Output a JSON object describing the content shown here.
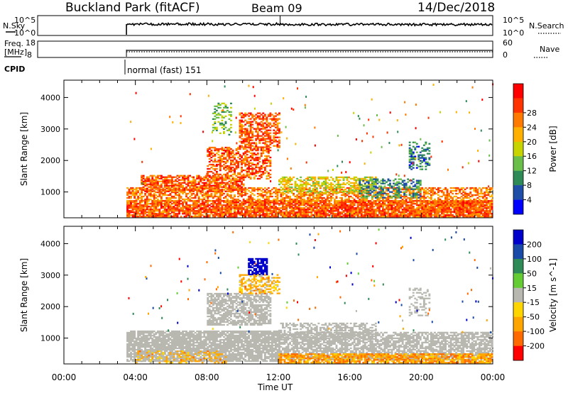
{
  "header": {
    "station": "Buckland Park (fitACF)",
    "beam": "Beam 09",
    "date": "14/Dec/2018"
  },
  "summary_panels": {
    "nsky_label": "N.Sky",
    "nsky_ticks": [
      "10^5",
      "10^0"
    ],
    "nsearch_label": "N.Search",
    "nsearch_ticks": [
      "10^5",
      "10^0"
    ],
    "freq_label_line1": "Freq.",
    "freq_label_line2": "[MHz]",
    "freq_ticks": [
      "18",
      "8"
    ],
    "nave_label": "Nave",
    "nave_ticks": [
      "60",
      "0"
    ],
    "cpid_label": "CPID",
    "cpid_mode": "normal (fast) 151"
  },
  "colors": {
    "frame": "#000000",
    "power_scale": [
      "#0000ff",
      "#1f4ea8",
      "#2e8b57",
      "#6abf4b",
      "#c8d400",
      "#ffb000",
      "#ff7a00",
      "#ff3300",
      "#ff0000"
    ],
    "velocity_scale": [
      "#0000cc",
      "#1a4aa8",
      "#2e8b57",
      "#66cc33",
      "#b8b8b0",
      "#ffd500",
      "#ffa500",
      "#ff6a00",
      "#ff0000"
    ],
    "ground_scatter": "#b8b8b0"
  },
  "chart_data": [
    {
      "type": "heatmap",
      "name": "power",
      "ylabel": "Slant Range [km]",
      "xlabel": "Time UT",
      "x_ticks": [
        "00:00",
        "04:00",
        "08:00",
        "12:00",
        "16:00",
        "20:00",
        "00:00"
      ],
      "y_ticks": [
        1000,
        2000,
        3000,
        4000
      ],
      "xlim_hours": [
        0,
        24
      ],
      "ylim_km": [
        180,
        4550
      ],
      "colorbar_label": "Power [dB]",
      "colorbar_ticks": [
        4,
        8,
        12,
        16,
        20,
        24,
        28
      ],
      "colorbar_range": [
        0,
        32
      ],
      "data_start_hour": 3.5,
      "regions": [
        {
          "t0": 3.5,
          "t1": 24.0,
          "r0": 200,
          "r1": 700,
          "level": 30,
          "density": 0.85
        },
        {
          "t0": 3.5,
          "t1": 24.0,
          "r0": 700,
          "r1": 1150,
          "level": 28,
          "density": 0.55
        },
        {
          "t0": 4.3,
          "t1": 10.0,
          "r0": 1000,
          "r1": 1500,
          "level": 30,
          "density": 0.7
        },
        {
          "t0": 8.0,
          "t1": 11.5,
          "r0": 1400,
          "r1": 2400,
          "level": 30,
          "density": 0.55
        },
        {
          "t0": 9.8,
          "t1": 12.0,
          "r0": 2400,
          "r1": 3500,
          "level": 30,
          "density": 0.55
        },
        {
          "t0": 8.3,
          "t1": 9.3,
          "r0": 2800,
          "r1": 3800,
          "level": 18,
          "density": 0.3
        },
        {
          "t0": 12.0,
          "t1": 17.5,
          "r0": 950,
          "r1": 1450,
          "level": 22,
          "density": 0.5
        },
        {
          "t0": 16.5,
          "t1": 20.0,
          "r0": 800,
          "r1": 1400,
          "level": 14,
          "density": 0.4
        },
        {
          "t0": 19.3,
          "t1": 20.5,
          "r0": 1700,
          "r1": 2600,
          "level": 12,
          "density": 0.35
        },
        {
          "t0": 20.5,
          "t1": 23.5,
          "r0": 350,
          "r1": 700,
          "level": 30,
          "density": 0.7
        }
      ]
    },
    {
      "type": "heatmap",
      "name": "velocity",
      "ylabel": "Slant Range [km]",
      "xlabel": "Time UT",
      "x_ticks": [
        "00:00",
        "04:00",
        "08:00",
        "12:00",
        "16:00",
        "20:00",
        "00:00"
      ],
      "y_ticks": [
        1000,
        2000,
        3000,
        4000
      ],
      "xlim_hours": [
        0,
        24
      ],
      "ylim_km": [
        180,
        4550
      ],
      "colorbar_label": "Velocity [m s^-1]",
      "colorbar_ticks": [
        200,
        100,
        50,
        15,
        -15,
        -50,
        -100,
        -200
      ],
      "colorbar_range": [
        -250,
        250
      ],
      "data_start_hour": 3.5,
      "regions": [
        {
          "t0": 3.5,
          "t1": 12.0,
          "r0": 250,
          "r1": 1200,
          "level": 0,
          "density": 0.85
        },
        {
          "t0": 12.0,
          "t1": 24.0,
          "r0": 300,
          "r1": 1200,
          "level": 0,
          "density": 0.7
        },
        {
          "t0": 12.0,
          "t1": 24.0,
          "r0": 200,
          "r1": 500,
          "level": -60,
          "density": 0.75
        },
        {
          "t0": 4.0,
          "t1": 9.0,
          "r0": 200,
          "r1": 600,
          "level": -40,
          "density": 0.3
        },
        {
          "t0": 8.0,
          "t1": 11.5,
          "r0": 1400,
          "r1": 2400,
          "level": 0,
          "density": 0.7
        },
        {
          "t0": 10.3,
          "t1": 11.3,
          "r0": 3000,
          "r1": 3500,
          "level": 220,
          "density": 0.75
        },
        {
          "t0": 9.8,
          "t1": 12.0,
          "r0": 2400,
          "r1": 3000,
          "level": -40,
          "density": 0.5
        },
        {
          "t0": 19.3,
          "t1": 20.5,
          "r0": 1700,
          "r1": 2600,
          "level": 0,
          "density": 0.3
        },
        {
          "t0": 12.0,
          "t1": 17.5,
          "r0": 950,
          "r1": 1450,
          "level": 0,
          "density": 0.5
        }
      ]
    }
  ]
}
